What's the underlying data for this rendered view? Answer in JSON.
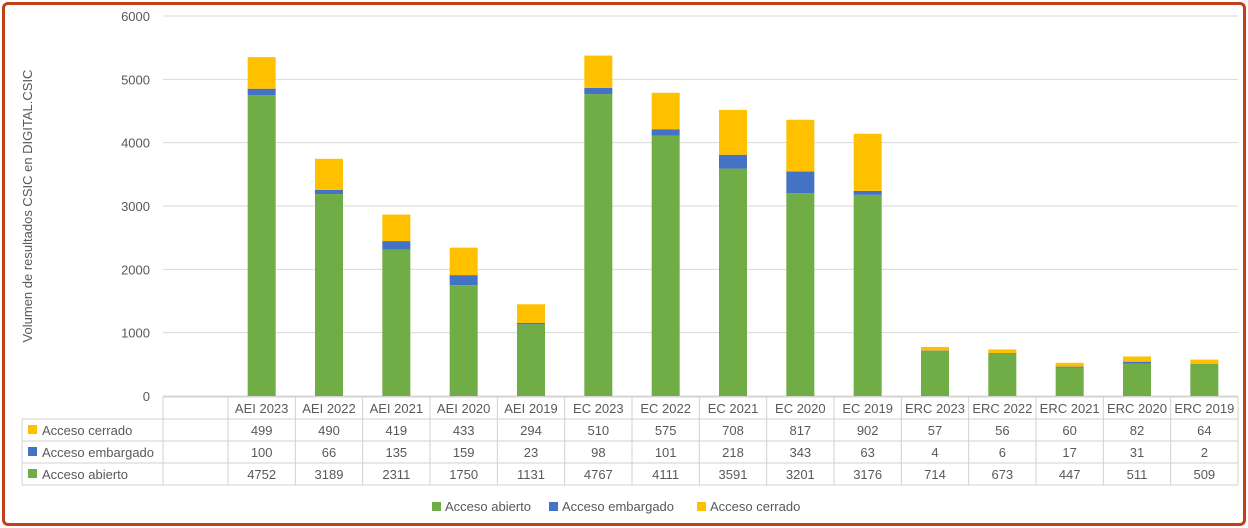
{
  "chart_data": {
    "type": "bar",
    "stacked": true,
    "title": "",
    "ylabel": "Volumen de resultados CSIC en DIGITAL.CSIC",
    "xlabel": "",
    "ylim": [
      0,
      6000
    ],
    "yticks": [
      0,
      1000,
      2000,
      3000,
      4000,
      5000,
      6000
    ],
    "grid": true,
    "legend_position": "bottom",
    "data_table": true,
    "categories": [
      "AEI 2023",
      "AEI 2022",
      "AEI 2021",
      "AEI 2020",
      "AEI 2019",
      "EC 2023",
      "EC 2022",
      "EC 2021",
      "EC 2020",
      "EC 2019",
      "ERC 2023",
      "ERC 2022",
      "ERC 2021",
      "ERC 2020",
      "ERC 2019"
    ],
    "series": [
      {
        "name": "Acceso abierto",
        "color": "#70ad47",
        "values": [
          4752,
          3189,
          2311,
          1750,
          1131,
          4767,
          4111,
          3591,
          3201,
          3176,
          714,
          673,
          447,
          511,
          509
        ]
      },
      {
        "name": "Acceso embargado",
        "color": "#4472c4",
        "values": [
          100,
          66,
          135,
          159,
          23,
          98,
          101,
          218,
          343,
          63,
          4,
          6,
          17,
          31,
          2
        ]
      },
      {
        "name": "Acceso cerrado",
        "color": "#ffc000",
        "values": [
          499,
          490,
          419,
          433,
          294,
          510,
          575,
          708,
          817,
          902,
          57,
          56,
          60,
          82,
          64
        ]
      }
    ]
  }
}
